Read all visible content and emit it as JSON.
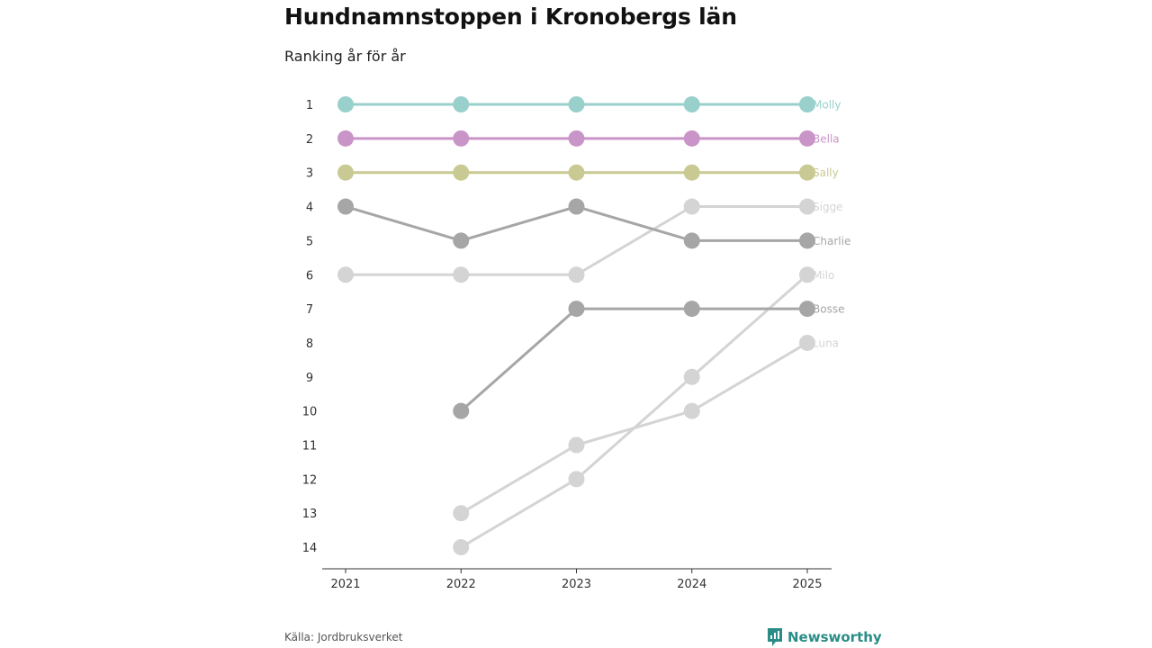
{
  "title": "Hundnamnstoppen i Kronobergs län",
  "subtitle": "Ranking år för år",
  "source": "Källa: Jordbruksverket",
  "brand": "Newsworthy",
  "colors": {
    "accent": "#2a8c86",
    "axis": "#333333",
    "tick_text": "#333333"
  },
  "chart_data": {
    "type": "line",
    "title": "Hundnamnstoppen i Kronobergs län",
    "subtitle": "Ranking år för år",
    "x": [
      "2021",
      "2022",
      "2023",
      "2024",
      "2025"
    ],
    "y_ticks": [
      "1",
      "2",
      "3",
      "4",
      "5",
      "6",
      "7",
      "8",
      "9",
      "10",
      "11",
      "12",
      "13",
      "14"
    ],
    "ylim": [
      1,
      14
    ],
    "y_reversed": true,
    "xlabel": "",
    "ylabel": "",
    "grid": false,
    "series": [
      {
        "name": "Molly",
        "color": "#99d0cc",
        "values": [
          1,
          1,
          1,
          1,
          1
        ]
      },
      {
        "name": "Bella",
        "color": "#c994c7",
        "values": [
          2,
          2,
          2,
          2,
          2
        ]
      },
      {
        "name": "Sally",
        "color": "#c9c993",
        "values": [
          3,
          3,
          3,
          3,
          3
        ]
      },
      {
        "name": "Sigge",
        "color": "#d4d4d4",
        "values": [
          6,
          6,
          6,
          4,
          4
        ]
      },
      {
        "name": "Charlie",
        "color": "#a6a6a6",
        "values": [
          4,
          5,
          4,
          5,
          5
        ]
      },
      {
        "name": "Milo",
        "color": "#d4d4d4",
        "values": [
          null,
          14,
          12,
          9,
          6
        ]
      },
      {
        "name": "Bosse",
        "color": "#a6a6a6",
        "values": [
          null,
          10,
          7,
          7,
          7
        ]
      },
      {
        "name": "Luna",
        "color": "#d4d4d4",
        "values": [
          null,
          13,
          11,
          10,
          8
        ]
      }
    ]
  }
}
